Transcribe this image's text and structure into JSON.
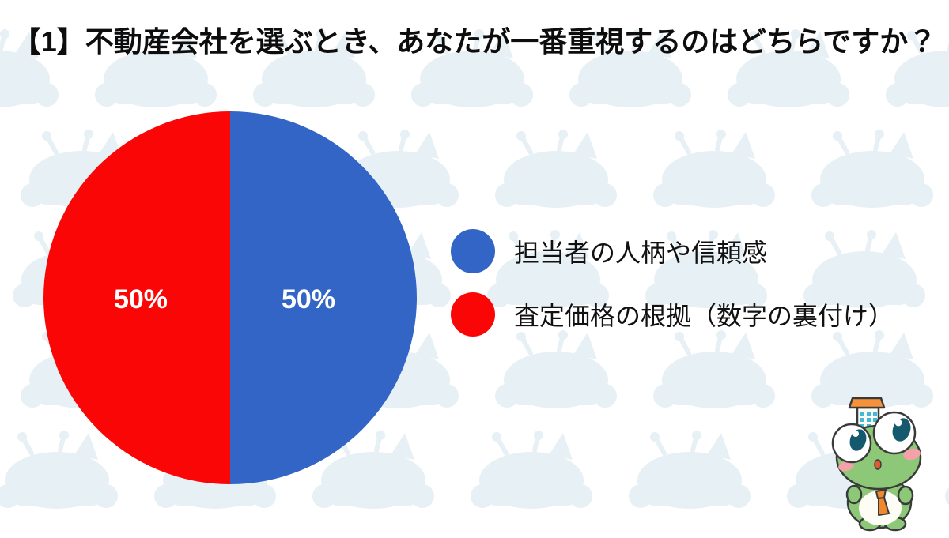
{
  "title": "【1】不動産会社を選ぶとき、あなたが一番重視するのはどちらですか？",
  "chart_data": {
    "type": "pie",
    "title": "【1】不動産会社を選ぶとき、あなたが一番重視するのはどちらですか？",
    "slices": [
      {
        "label": "担当者の人柄や信頼感",
        "value": 50,
        "unit": "%",
        "data_label": "50%",
        "color": "#3365C6",
        "position": "right-half"
      },
      {
        "label": "査定価格の根拠（数字の裏付け）",
        "value": 50,
        "unit": "%",
        "data_label": "50%",
        "color": "#FA0606",
        "position": "left-half"
      }
    ],
    "start_angle_deg": 0,
    "direction": "clockwise",
    "legend_position": "right-of-chart",
    "data_labels": "inside, white bold"
  },
  "legend": {
    "items": [
      {
        "label": "担当者の人柄や信頼感",
        "color": "#3365C6"
      },
      {
        "label": "査定価格の根拠（数字の裏付け）",
        "color": "#FA0606"
      }
    ]
  },
  "colors": {
    "background": "#FFFFFF",
    "pattern_silhouette": "#E7F0F5",
    "title_text": "#0D0D0D",
    "data_label_text": "#FFFFFF"
  },
  "decor": {
    "background_pattern": "frog-mascot-silhouette-grid",
    "mascot": "frog-with-building-on-head"
  }
}
